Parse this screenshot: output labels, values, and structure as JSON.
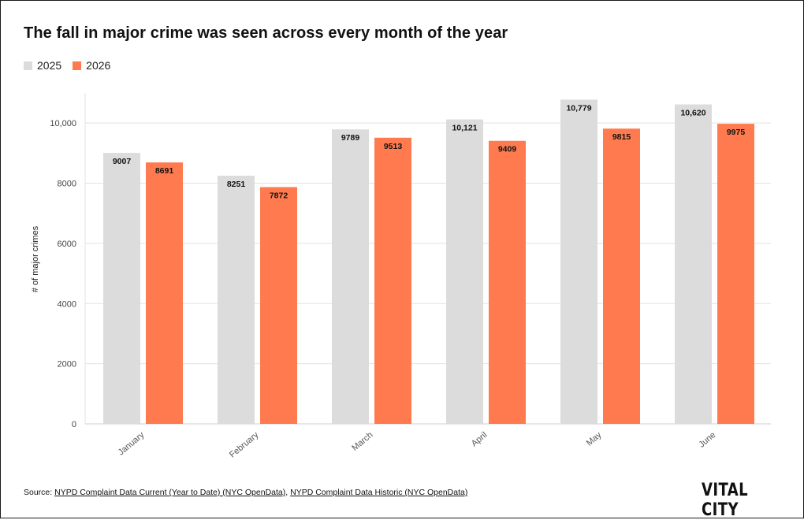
{
  "chart_data": {
    "type": "bar",
    "title": "The fall in major crime was seen across every month of the year",
    "ylabel": "# of major crimes",
    "xlabel": "",
    "ylim": [
      0,
      11000
    ],
    "yticks": [
      0,
      2000,
      4000,
      6000,
      8000,
      10000
    ],
    "ytick_labels": [
      "0",
      "2000",
      "4000",
      "6000",
      "8000",
      "10,000"
    ],
    "grid": true,
    "legend_position": "top-left",
    "categories": [
      "January",
      "February",
      "March",
      "April",
      "May",
      "June"
    ],
    "series": [
      {
        "name": "2025",
        "color": "#dcdcdc",
        "values": [
          9007,
          8251,
          9789,
          10121,
          10779,
          10620
        ],
        "labels": [
          "9007",
          "8251",
          "9789",
          "10,121",
          "10,779",
          "10,620"
        ]
      },
      {
        "name": "2026",
        "color": "#ff7b4f",
        "values": [
          8691,
          7872,
          9513,
          9409,
          9815,
          9975
        ],
        "labels": [
          "8691",
          "7872",
          "9513",
          "9409",
          "9815",
          "9975"
        ]
      }
    ]
  },
  "footer": {
    "source_prefix": "Source: ",
    "source_link_1": "NYPD Complaint Data Current (Year to Date) (NYC OpenData)",
    "separator": ", ",
    "source_link_2": "NYPD Complaint Data Historic (NYC OpenData)",
    "brand": "VITAL CITY"
  }
}
